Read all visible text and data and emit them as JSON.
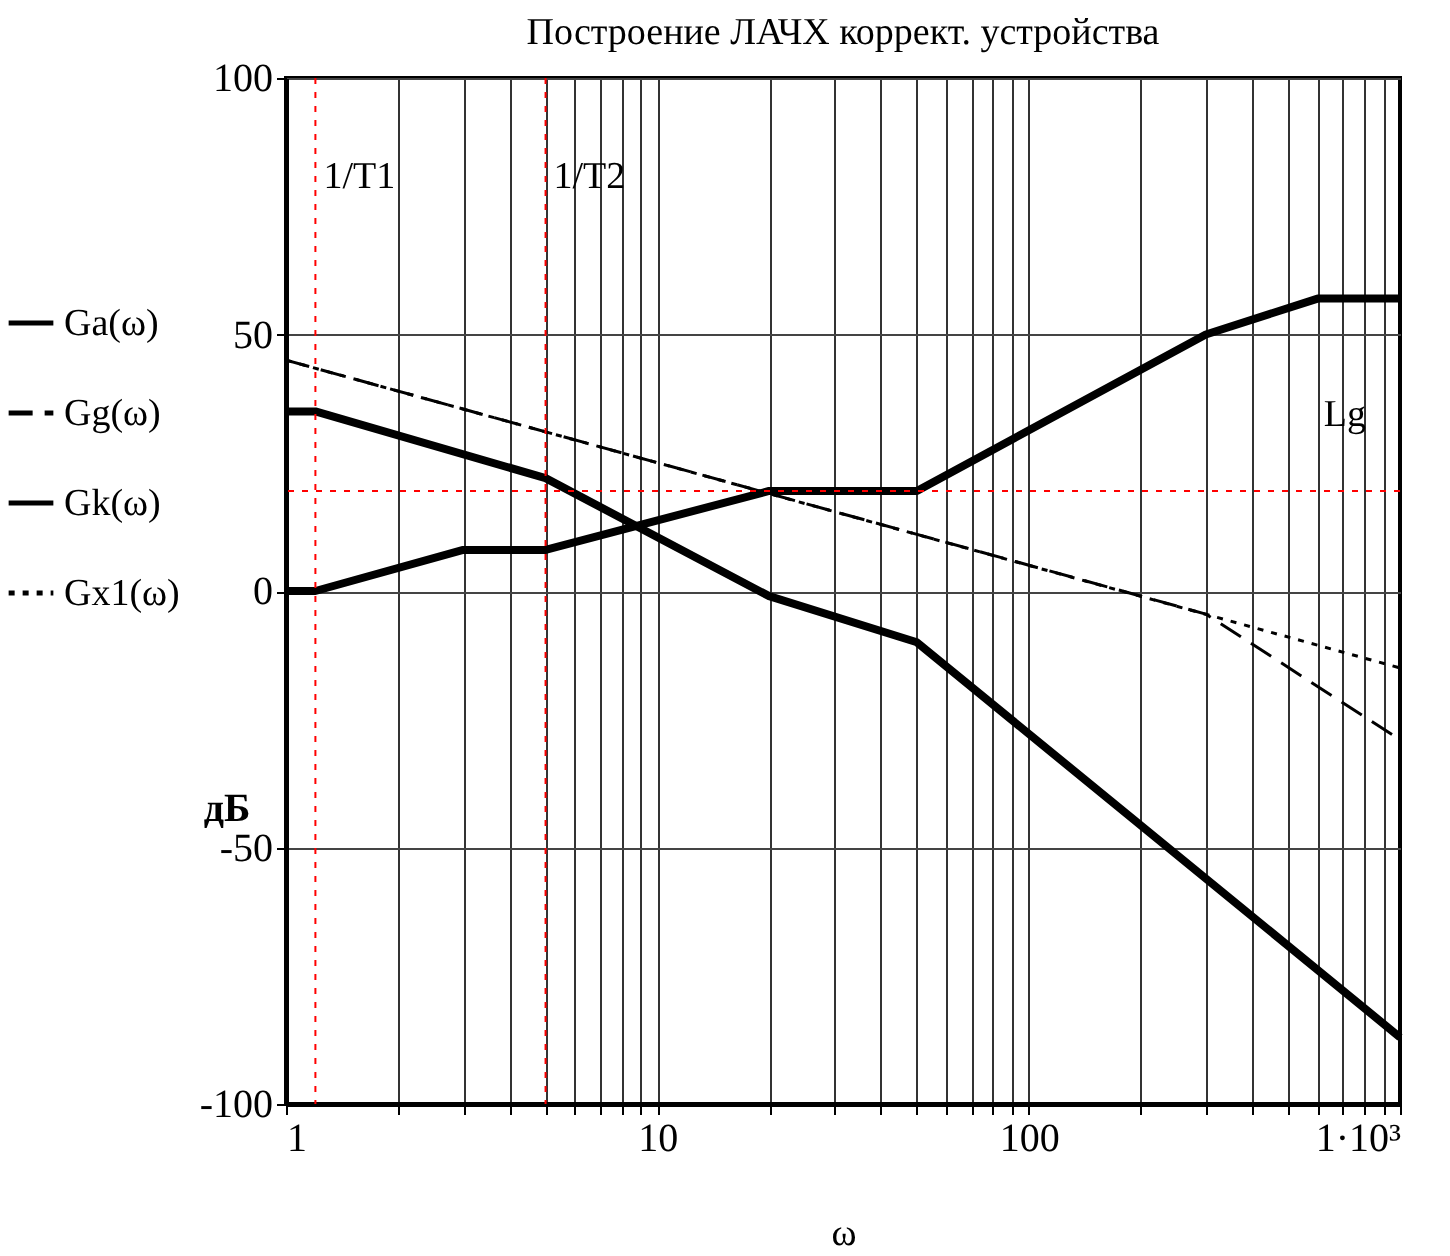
{
  "chart_data": {
    "type": "line",
    "title": "Построение ЛАЧХ коррект. устройства",
    "xlabel": "ω",
    "ylabel": "дБ",
    "log": "x",
    "xlim": [
      1,
      1000
    ],
    "ylim": [
      -100,
      100
    ],
    "xticks": [
      1,
      {
        "value": 2,
        "label": null
      },
      {
        "value": 3,
        "label": null
      },
      {
        "value": 4,
        "label": null
      },
      {
        "value": 5,
        "label": null
      },
      {
        "value": 6,
        "label": null
      },
      {
        "value": 7,
        "label": null
      },
      {
        "value": 8,
        "label": null
      },
      {
        "value": 9,
        "label": null
      },
      10,
      {
        "value": 20,
        "label": null
      },
      {
        "value": 30,
        "label": null
      },
      {
        "value": 40,
        "label": null
      },
      {
        "value": 50,
        "label": null
      },
      {
        "value": 60,
        "label": null
      },
      {
        "value": 70,
        "label": null
      },
      {
        "value": 80,
        "label": null
      },
      {
        "value": 90,
        "label": null
      },
      100,
      {
        "value": 200,
        "label": null
      },
      {
        "value": 300,
        "label": null
      },
      {
        "value": 400,
        "label": null
      },
      {
        "value": 500,
        "label": null
      },
      {
        "value": 600,
        "label": null
      },
      {
        "value": 700,
        "label": null
      },
      {
        "value": 800,
        "label": null
      },
      {
        "value": 900,
        "label": null
      },
      {
        "value": 1000,
        "label": "1·10³"
      }
    ],
    "yticks": [
      -100,
      -50,
      0,
      50,
      100
    ],
    "grid": true,
    "legend": "left",
    "marker": "none",
    "series": [
      {
        "name": "Ga(ω)",
        "color": "#000000",
        "line_style": "solid",
        "x": [
          1,
          1.2,
          5,
          20,
          50,
          1000
        ],
        "values": [
          35,
          35,
          22,
          -1,
          -10,
          -87
        ]
      },
      {
        "name": "Gg(ω)",
        "color": "#000000",
        "line_style": "dashed",
        "x": [
          1,
          300,
          1000
        ],
        "values": [
          45,
          -4.5,
          -29
        ]
      },
      {
        "name": "Gk(ω)",
        "color": "#000000",
        "line_style": "solid",
        "x": [
          1,
          1.2,
          3,
          5,
          20,
          50,
          300,
          600,
          1000
        ],
        "values": [
          0,
          0,
          8,
          8,
          19.5,
          19.5,
          50,
          57,
          57
        ]
      },
      {
        "name": "Gx1(ω)",
        "color": "#000000",
        "line_style": "dotted",
        "x": [
          1,
          1000
        ],
        "values": [
          45,
          -15
        ]
      }
    ],
    "ref_lines": [
      {
        "axis": "x",
        "value": 1.2,
        "label": "1/T1",
        "color": "#ff0000",
        "line_style": "dotted"
      },
      {
        "axis": "x",
        "value": 5,
        "label": "1/T2",
        "color": "#ff0000",
        "line_style": "dotted"
      },
      {
        "axis": "y",
        "value": 19.5,
        "color": "#ff0000",
        "line_style": "dotted"
      }
    ],
    "annotations": [
      "Lg"
    ]
  }
}
